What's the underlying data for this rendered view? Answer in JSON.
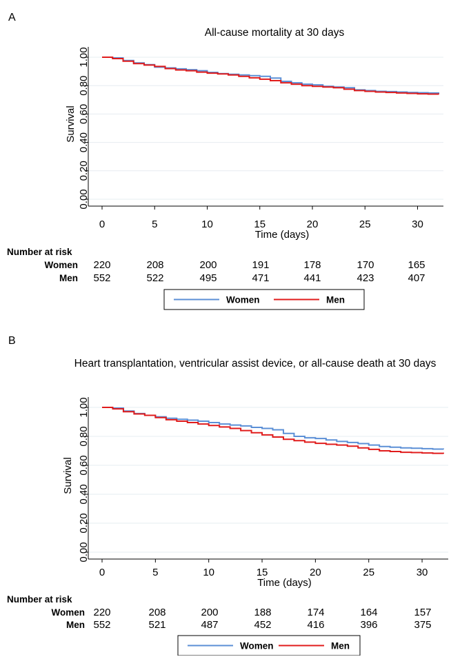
{
  "chart_data": [
    {
      "panel_label": "A",
      "type": "line",
      "step": true,
      "title": "All-cause mortality at 30 days",
      "xlabel": "Time (days)",
      "ylabel": "Survival",
      "xlim": [
        0,
        32
      ],
      "ylim": [
        0,
        1
      ],
      "xticks": [
        "0",
        "5",
        "10",
        "15",
        "20",
        "25",
        "30"
      ],
      "yticks": [
        "0.00",
        "0.20",
        "0.40",
        "0.60",
        "0.80",
        "1.00"
      ],
      "grid": true,
      "legend_position": "bottom",
      "series": [
        {
          "name": "Women",
          "color": "#5b8fd6",
          "x": [
            0,
            1,
            2,
            3,
            4,
            5,
            6,
            7,
            8,
            9,
            10,
            11,
            12,
            13,
            14,
            15,
            16,
            17,
            18,
            19,
            20,
            21,
            22,
            23,
            24,
            25,
            26,
            27,
            28,
            29,
            30,
            31,
            32
          ],
          "y": [
            1.0,
            0.995,
            0.977,
            0.96,
            0.948,
            0.93,
            0.925,
            0.918,
            0.912,
            0.905,
            0.893,
            0.885,
            0.88,
            0.875,
            0.87,
            0.865,
            0.853,
            0.83,
            0.82,
            0.81,
            0.805,
            0.795,
            0.79,
            0.785,
            0.77,
            0.765,
            0.76,
            0.758,
            0.755,
            0.752,
            0.75,
            0.748,
            0.745
          ]
        },
        {
          "name": "Men",
          "color": "#e01b1b",
          "x": [
            0,
            1,
            2,
            3,
            4,
            5,
            6,
            7,
            8,
            9,
            10,
            11,
            12,
            13,
            14,
            15,
            16,
            17,
            18,
            19,
            20,
            21,
            22,
            23,
            24,
            25,
            26,
            27,
            28,
            29,
            30,
            31,
            32
          ],
          "y": [
            1.0,
            0.99,
            0.972,
            0.955,
            0.945,
            0.935,
            0.92,
            0.91,
            0.905,
            0.895,
            0.888,
            0.882,
            0.875,
            0.865,
            0.855,
            0.845,
            0.835,
            0.82,
            0.81,
            0.8,
            0.795,
            0.79,
            0.785,
            0.775,
            0.765,
            0.76,
            0.755,
            0.752,
            0.748,
            0.745,
            0.742,
            0.74,
            0.738
          ]
        }
      ],
      "risk_table": {
        "header": "Number at risk",
        "rows": [
          {
            "label": "Women",
            "values": [
              "220",
              "208",
              "200",
              "191",
              "178",
              "170",
              "165"
            ]
          },
          {
            "label": "Men",
            "values": [
              "552",
              "522",
              "495",
              "471",
              "441",
              "423",
              "407"
            ]
          }
        ]
      }
    },
    {
      "panel_label": "B",
      "type": "line",
      "step": true,
      "title": "Heart transplantation, ventricular assist device, or all-cause death at 30 days",
      "xlabel": "Time (days)",
      "ylabel": "Survival",
      "xlim": [
        0,
        32
      ],
      "ylim": [
        0,
        1
      ],
      "xticks": [
        "0",
        "5",
        "10",
        "15",
        "20",
        "25",
        "30"
      ],
      "yticks": [
        "0.00",
        "0.20",
        "0.40",
        "0.60",
        "0.80",
        "1.00"
      ],
      "grid": true,
      "legend_position": "bottom",
      "series": [
        {
          "name": "Women",
          "color": "#5b8fd6",
          "x": [
            0,
            1,
            2,
            3,
            4,
            5,
            6,
            7,
            8,
            9,
            10,
            11,
            12,
            13,
            14,
            15,
            16,
            17,
            18,
            19,
            20,
            21,
            22,
            23,
            24,
            25,
            26,
            27,
            28,
            29,
            30,
            31,
            32
          ],
          "y": [
            1.0,
            0.995,
            0.975,
            0.958,
            0.945,
            0.935,
            0.925,
            0.918,
            0.912,
            0.905,
            0.895,
            0.885,
            0.878,
            0.872,
            0.862,
            0.855,
            0.845,
            0.82,
            0.8,
            0.79,
            0.785,
            0.775,
            0.765,
            0.758,
            0.75,
            0.74,
            0.73,
            0.725,
            0.72,
            0.718,
            0.715,
            0.712,
            0.71
          ]
        },
        {
          "name": "Men",
          "color": "#e01b1b",
          "x": [
            0,
            1,
            2,
            3,
            4,
            5,
            6,
            7,
            8,
            9,
            10,
            11,
            12,
            13,
            14,
            15,
            16,
            17,
            18,
            19,
            20,
            21,
            22,
            23,
            24,
            25,
            26,
            27,
            28,
            29,
            30,
            31,
            32
          ],
          "y": [
            1.0,
            0.99,
            0.97,
            0.955,
            0.945,
            0.93,
            0.915,
            0.905,
            0.895,
            0.885,
            0.875,
            0.865,
            0.855,
            0.84,
            0.825,
            0.81,
            0.795,
            0.78,
            0.77,
            0.76,
            0.752,
            0.745,
            0.74,
            0.732,
            0.72,
            0.71,
            0.7,
            0.695,
            0.69,
            0.688,
            0.685,
            0.683,
            0.68
          ]
        }
      ],
      "risk_table": {
        "header": "Number at risk",
        "rows": [
          {
            "label": "Women",
            "values": [
              "220",
              "208",
              "200",
              "188",
              "174",
              "164",
              "157"
            ]
          },
          {
            "label": "Men",
            "values": [
              "552",
              "521",
              "487",
              "452",
              "416",
              "396",
              "375"
            ]
          }
        ]
      }
    }
  ]
}
